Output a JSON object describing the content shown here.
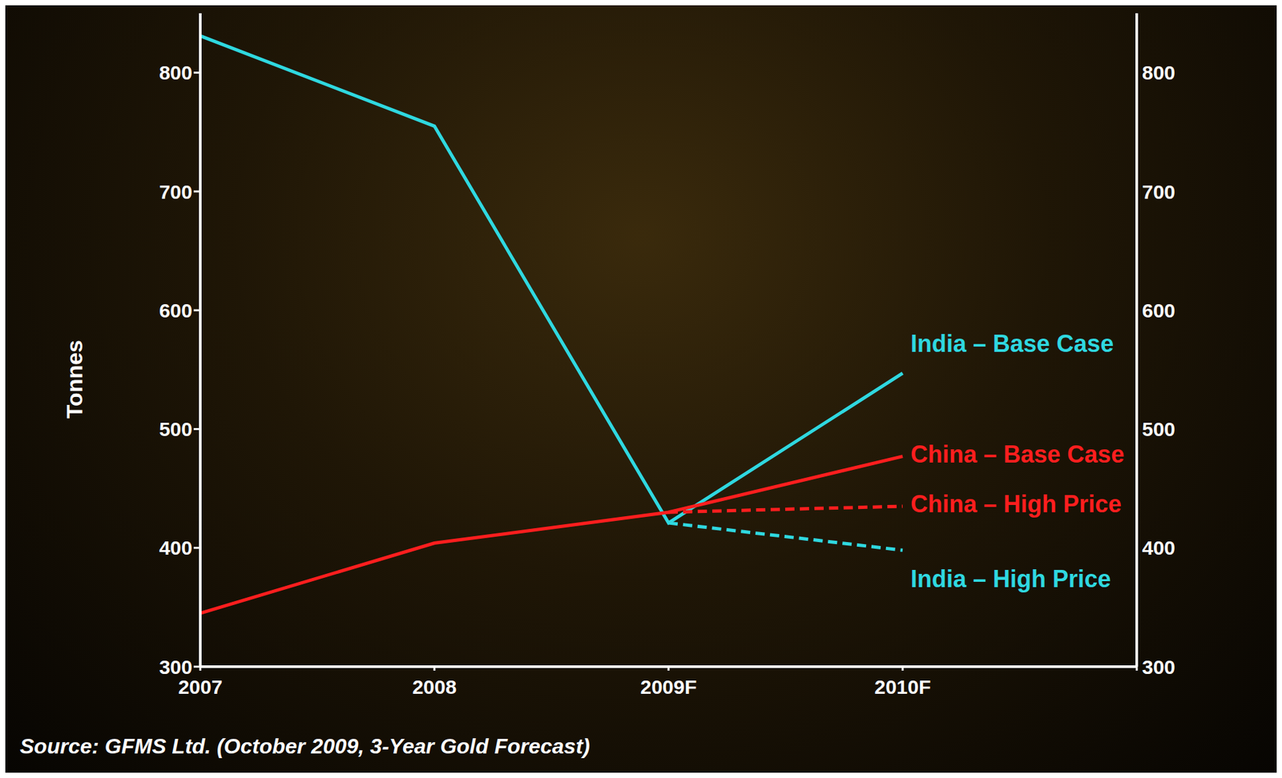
{
  "chart_data": {
    "type": "line",
    "y_label": "Tonnes",
    "source": "Source: GFMS Ltd. (October 2009, 3-Year Gold Forecast)",
    "categories": [
      "2007",
      "2008",
      "2009F",
      "2010F",
      null
    ],
    "ylim": [
      300,
      850
    ],
    "yticks": [
      300,
      400,
      500,
      600,
      700,
      800
    ],
    "y2lim": [
      300,
      850
    ],
    "y2ticks": [
      300,
      400,
      500,
      600,
      700,
      800
    ],
    "grid": false,
    "series": [
      {
        "name": "India – Base Case",
        "color": "#2fd8e0",
        "line_style": "solid",
        "values": [
          831,
          755,
          421,
          547,
          null
        ]
      },
      {
        "name": "China – Base Case",
        "color": "#ff1e1e",
        "line_style": "solid",
        "values": [
          345,
          404,
          430,
          477,
          null
        ]
      },
      {
        "name": "China – High Price",
        "color": "#ff1e1e",
        "line_style": "dashed",
        "values": [
          null,
          null,
          430,
          435,
          null
        ]
      },
      {
        "name": "India – High Price",
        "color": "#2fd8e0",
        "line_style": "dashed",
        "values": [
          null,
          null,
          421,
          398,
          null
        ]
      }
    ]
  }
}
